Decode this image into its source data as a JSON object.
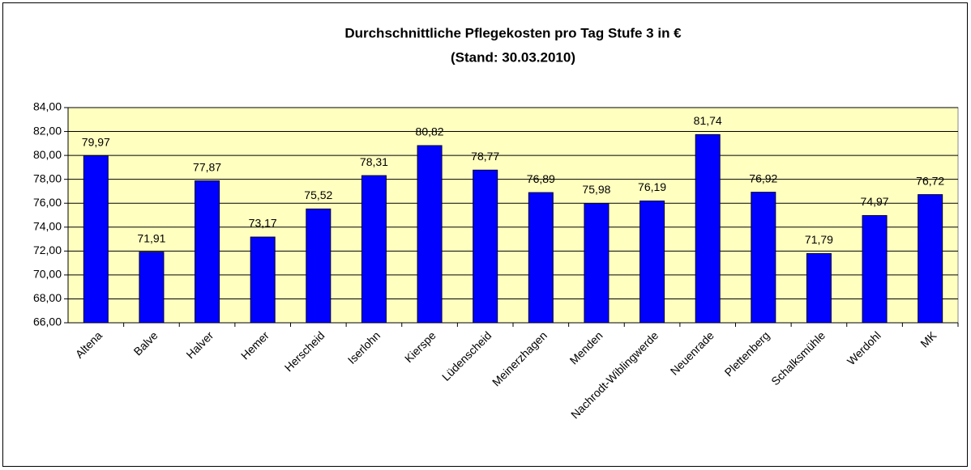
{
  "chart_data": {
    "type": "bar",
    "title": "Durchschnittliche Pflegekosten pro Tag Stufe 3 in €",
    "subtitle": "(Stand: 30.03.2010)",
    "categories": [
      "Altena",
      "Balve",
      "Halver",
      "Hemer",
      "Herscheid",
      "Iserlohn",
      "Kierspe",
      "Lüdenscheid",
      "Meinerzhagen",
      "Menden",
      "Nachrodt-Wiblingwerde",
      "Neuenrade",
      "Plettenberg",
      "Schalksmühle",
      "Werdohl",
      "MK"
    ],
    "values": [
      79.97,
      71.91,
      77.87,
      73.17,
      75.52,
      78.31,
      80.82,
      78.77,
      76.89,
      75.98,
      76.19,
      81.74,
      76.92,
      71.79,
      74.97,
      76.72
    ],
    "value_labels": [
      "79,97",
      "71,91",
      "77,87",
      "73,17",
      "75,52",
      "78,31",
      "80,82",
      "78,77",
      "76,89",
      "75,98",
      "76,19",
      "81,74",
      "76,92",
      "71,79",
      "74,97",
      "76,72"
    ],
    "color": "#0000ff",
    "ylim": [
      66,
      84
    ],
    "yticks": [
      {
        "value": 66,
        "label": "66,00"
      },
      {
        "value": 68,
        "label": "68,00"
      },
      {
        "value": 70,
        "label": "70,00"
      },
      {
        "value": 72,
        "label": "72,00"
      },
      {
        "value": 74,
        "label": "74,00"
      },
      {
        "value": 76,
        "label": "76,00"
      },
      {
        "value": 78,
        "label": "78,00"
      },
      {
        "value": 80,
        "label": "80,00"
      },
      {
        "value": 82,
        "label": "82,00"
      },
      {
        "value": 84,
        "label": "84,00"
      }
    ],
    "grid": true
  }
}
